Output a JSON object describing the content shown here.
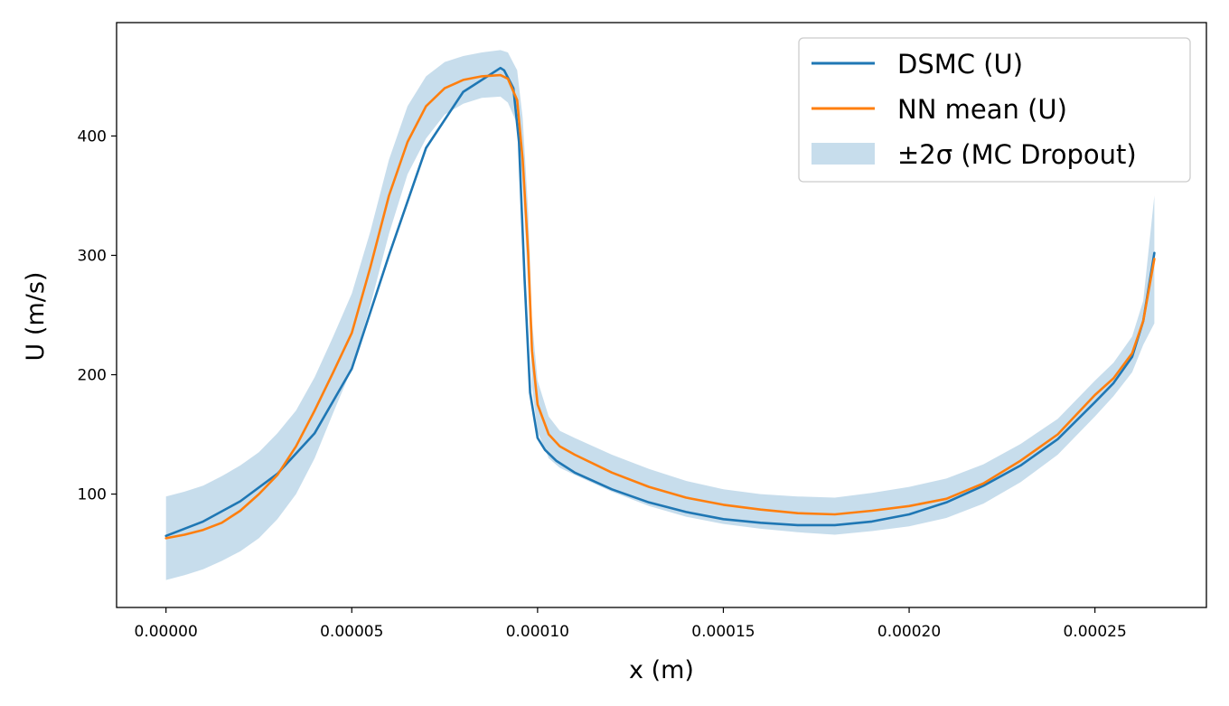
{
  "chart_data": {
    "type": "line",
    "title": "",
    "xlabel": "x (m)",
    "ylabel": "U (m/s)",
    "xlim": [
      -1.33e-05,
      0.00028
    ],
    "ylim": [
      5,
      495
    ],
    "grid": false,
    "legend_position": "top-right",
    "x_ticks": [
      {
        "value": 0.0,
        "label": "0.00000"
      },
      {
        "value": 5e-05,
        "label": "0.00005"
      },
      {
        "value": 0.0001,
        "label": "0.00010"
      },
      {
        "value": 0.00015,
        "label": "0.00015"
      },
      {
        "value": 0.0002,
        "label": "0.00020"
      },
      {
        "value": 0.00025,
        "label": "0.00025"
      }
    ],
    "y_ticks": [
      {
        "value": 100,
        "label": "100"
      },
      {
        "value": 200,
        "label": "200"
      },
      {
        "value": 300,
        "label": "300"
      },
      {
        "value": 400,
        "label": "400"
      }
    ],
    "series": [
      {
        "name": "DSMC (U)",
        "color": "#1f77b4",
        "x": [
          0,
          1e-05,
          2e-05,
          3e-05,
          4e-05,
          5e-05,
          6e-05,
          7e-05,
          8e-05,
          9e-05,
          9.1e-05,
          9.35e-05,
          9.5e-05,
          9.65e-05,
          9.8e-05,
          0.0001,
          0.000102,
          0.000105,
          0.00011,
          0.00012,
          0.00013,
          0.00014,
          0.00015,
          0.00016,
          0.00017,
          0.00018,
          0.00019,
          0.0002,
          0.00021,
          0.00022,
          0.00023,
          0.00024,
          0.00025,
          0.000255,
          0.00026,
          0.000263,
          0.000266
        ],
        "y": [
          65,
          77,
          94,
          117,
          151,
          205,
          300,
          390,
          437,
          457,
          455,
          440,
          395,
          280,
          185,
          147,
          137,
          128,
          118,
          104,
          93,
          85,
          79,
          76,
          74,
          74,
          77,
          83,
          93,
          107,
          124,
          146,
          177,
          193,
          215,
          245,
          302
        ]
      },
      {
        "name": "NN mean (U)",
        "color": "#ff7f0e",
        "x": [
          0,
          5e-06,
          1e-05,
          1.5e-05,
          2e-05,
          2.5e-05,
          3e-05,
          3.5e-05,
          4e-05,
          4.5e-05,
          5e-05,
          5.5e-05,
          6e-05,
          6.5e-05,
          7e-05,
          7.5e-05,
          8e-05,
          8.5e-05,
          9e-05,
          9.2e-05,
          9.45e-05,
          9.6e-05,
          9.75e-05,
          9.85e-05,
          0.0001,
          0.000103,
          0.000106,
          0.00011,
          0.00012,
          0.00013,
          0.00014,
          0.00015,
          0.00016,
          0.00017,
          0.00018,
          0.00019,
          0.0002,
          0.00021,
          0.00022,
          0.00023,
          0.00024,
          0.00025,
          0.000255,
          0.00026,
          0.000263,
          0.000266
        ],
        "y": [
          63,
          66,
          70,
          76,
          86,
          100,
          116,
          140,
          170,
          202,
          235,
          290,
          350,
          395,
          425,
          440,
          447,
          450,
          451,
          448,
          430,
          380,
          300,
          220,
          175,
          150,
          140,
          133,
          118,
          106,
          97,
          91,
          87,
          84,
          83,
          86,
          90,
          96,
          109,
          128,
          150,
          183,
          197,
          218,
          245,
          297
        ]
      }
    ],
    "band": {
      "name": "±2σ (MC Dropout)",
      "color": "#1f77b4",
      "opacity": 0.25,
      "x": [
        0,
        5e-06,
        1e-05,
        1.5e-05,
        2e-05,
        2.5e-05,
        3e-05,
        3.5e-05,
        4e-05,
        4.5e-05,
        5e-05,
        5.5e-05,
        6e-05,
        6.5e-05,
        7e-05,
        7.5e-05,
        8e-05,
        8.5e-05,
        9e-05,
        9.2e-05,
        9.45e-05,
        9.6e-05,
        9.75e-05,
        9.85e-05,
        0.0001,
        0.000103,
        0.000106,
        0.00011,
        0.00012,
        0.00013,
        0.00014,
        0.00015,
        0.00016,
        0.00017,
        0.00018,
        0.00019,
        0.0002,
        0.00021,
        0.00022,
        0.00023,
        0.00024,
        0.00025,
        0.000255,
        0.00026,
        0.000263,
        0.000266
      ],
      "upper": [
        98,
        102,
        107,
        115,
        124,
        135,
        151,
        170,
        198,
        232,
        268,
        320,
        380,
        425,
        450,
        462,
        467,
        470,
        472,
        470,
        455,
        415,
        335,
        245,
        195,
        165,
        153,
        147,
        133,
        121,
        111,
        104,
        100,
        98,
        97,
        101,
        106,
        113,
        125,
        142,
        163,
        195,
        210,
        232,
        262,
        350
      ],
      "lower": [
        28,
        32,
        37,
        44,
        52,
        63,
        79,
        100,
        130,
        168,
        205,
        258,
        318,
        368,
        398,
        418,
        427,
        432,
        433,
        428,
        410,
        360,
        270,
        190,
        152,
        130,
        122,
        116,
        102,
        90,
        81,
        75,
        71,
        68,
        66,
        69,
        73,
        80,
        92,
        110,
        133,
        165,
        182,
        202,
        225,
        243
      ]
    }
  }
}
